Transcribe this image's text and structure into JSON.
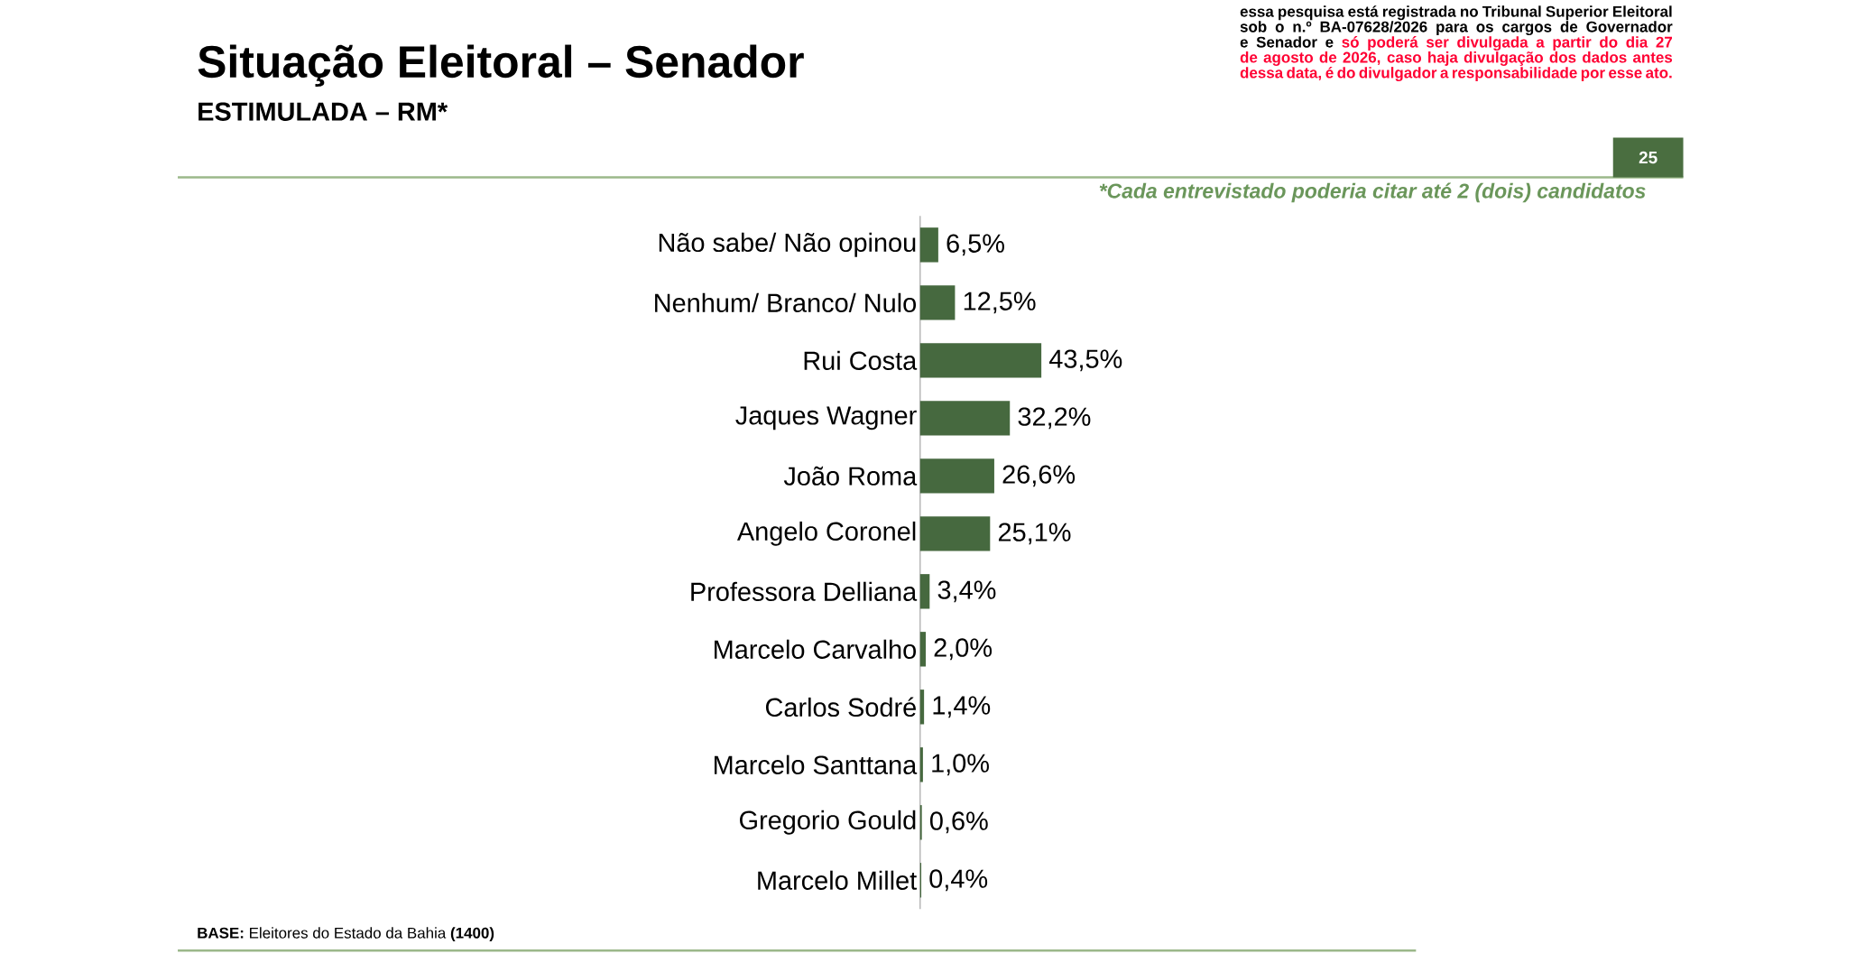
{
  "chart_data": {
    "type": "bar",
    "orientation": "horizontal",
    "title": "Situação Eleitoral – Senador",
    "subtitle": "ESTIMULADA – RM*",
    "categories": [
      "Não sabe/ Não opinou",
      "Nenhum/ Branco/ Nulo",
      "Rui Costa",
      "Jaques Wagner",
      "João Roma",
      "Angelo Coronel",
      "Professora Delliana",
      "Marcelo Carvalho",
      "Carlos Sodré",
      "Marcelo Santtana",
      "Gregorio Gould",
      "Marcelo Millet"
    ],
    "values": [
      6.5,
      12.5,
      43.5,
      32.2,
      26.6,
      25.1,
      3.4,
      2.0,
      1.4,
      1.0,
      0.6,
      0.4
    ],
    "value_labels": [
      "6,5%",
      "12,5%",
      "43,5%",
      "32,2%",
      "26,6%",
      "25,1%",
      "3,4%",
      "2,0%",
      "1,4%",
      "1,0%",
      "0,6%",
      "0,4%"
    ],
    "color": "#46693f",
    "annotations": [
      "essa pesquisa está registrada no Tribunal Superior Eleitoral sob o n.º BA-07628/2026 para os cargos de Governador e Senador e",
      "só poderá ser divulgada a partir do dia 27 de agosto de 2026, caso haja divulgação dos dados antes dessa data, é do divulgador a responsabilidade por esse ato.",
      "25",
      "*Cada entrevistado poderia citar até 2 (dois) candidatos",
      "**BASE:** Eleitores do Estado da Bahia **(1400)**"
    ]
  }
}
